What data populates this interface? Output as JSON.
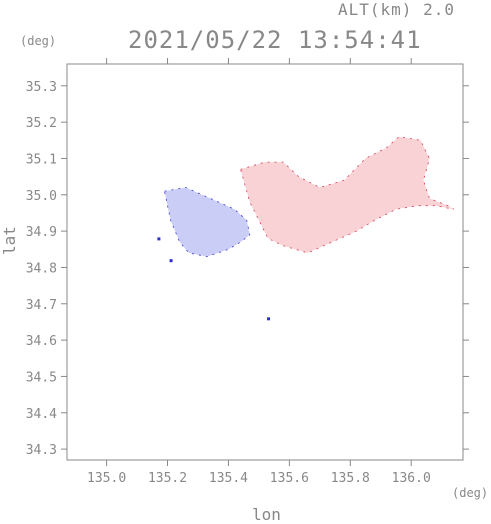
{
  "header": {
    "altitude": "ALT(km) 2.0",
    "datetime": "2021/05/22 13:54:41"
  },
  "chart_data": {
    "type": "heatmap",
    "title": "2021/05/22 13:54:41",
    "subtitle": "ALT(km) 2.0",
    "xlabel": "lon",
    "ylabel": "lat",
    "x_unit": "(deg)",
    "y_unit": "(deg)",
    "xlim": [
      134.87,
      136.17
    ],
    "ylim": [
      34.27,
      35.36
    ],
    "x_ticks": [
      "135.0",
      "135.2",
      "135.4",
      "135.6",
      "135.8",
      "136.0"
    ],
    "y_ticks": [
      "34.3",
      "34.4",
      "34.5",
      "34.6",
      "34.7",
      "34.8",
      "34.9",
      "35.0",
      "35.1",
      "35.2",
      "35.3"
    ],
    "grid": false,
    "colors": {
      "negative": "#c8ccf6",
      "positive": "#f9d0d3",
      "edge_blue": "#2d2dd6",
      "edge_red": "#d2324a"
    },
    "regions": [
      {
        "sign": "negative",
        "outline": [
          [
            135.19,
            35.01
          ],
          [
            135.26,
            35.02
          ],
          [
            135.34,
            34.99
          ],
          [
            135.42,
            34.96
          ],
          [
            135.46,
            34.93
          ],
          [
            135.47,
            34.89
          ],
          [
            135.44,
            34.87
          ],
          [
            135.4,
            34.85
          ],
          [
            135.33,
            34.83
          ],
          [
            135.27,
            34.84
          ],
          [
            135.24,
            34.87
          ],
          [
            135.21,
            34.93
          ]
        ]
      },
      {
        "sign": "positive",
        "outline": [
          [
            135.44,
            35.07
          ],
          [
            135.52,
            35.09
          ],
          [
            135.58,
            35.09
          ],
          [
            135.63,
            35.05
          ],
          [
            135.7,
            35.02
          ],
          [
            135.78,
            35.04
          ],
          [
            135.85,
            35.1
          ],
          [
            135.92,
            35.13
          ],
          [
            135.96,
            35.16
          ],
          [
            136.03,
            35.15
          ],
          [
            136.06,
            35.1
          ],
          [
            136.04,
            35.04
          ],
          [
            136.06,
            34.99
          ],
          [
            136.12,
            34.97
          ],
          [
            136.14,
            34.96
          ],
          [
            136.08,
            34.97
          ],
          [
            136.02,
            34.97
          ],
          [
            135.95,
            34.96
          ],
          [
            135.88,
            34.93
          ],
          [
            135.82,
            34.9
          ],
          [
            135.74,
            34.87
          ],
          [
            135.66,
            34.84
          ],
          [
            135.58,
            34.86
          ],
          [
            135.53,
            34.88
          ],
          [
            135.5,
            34.93
          ],
          [
            135.47,
            34.98
          ]
        ]
      }
    ],
    "isolated_points": [
      [
        135.17,
        34.88
      ],
      [
        135.53,
        34.66
      ],
      [
        135.21,
        34.82
      ]
    ]
  },
  "axis": {
    "x_unit": "(deg)",
    "y_unit": "(deg)",
    "xlabel": "lon",
    "ylabel": "lat"
  }
}
